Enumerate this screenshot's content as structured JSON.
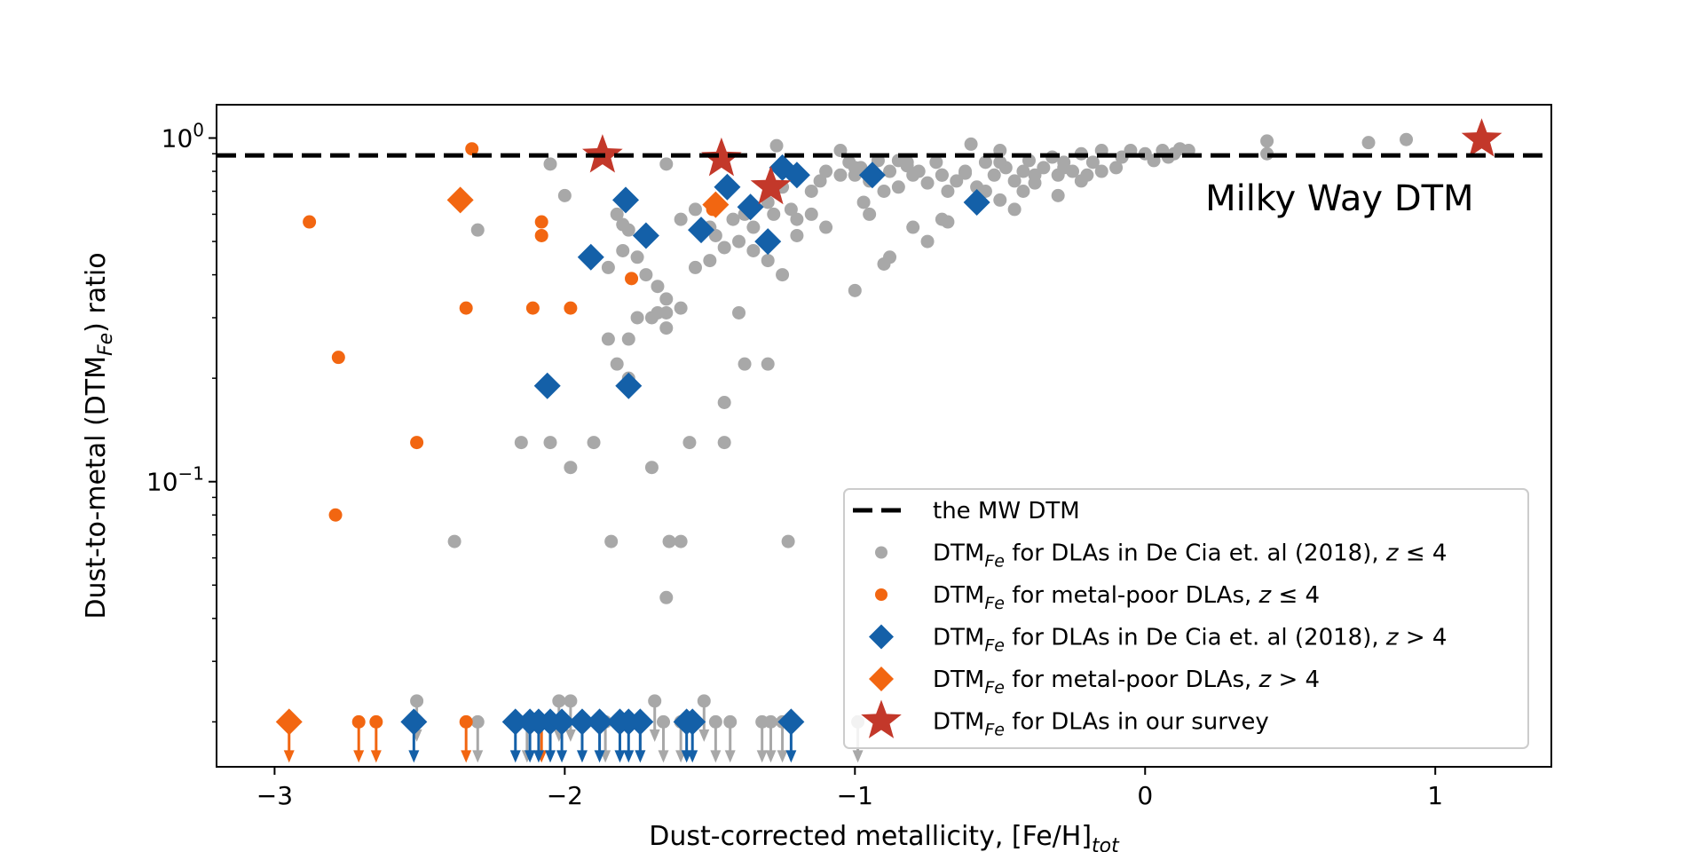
{
  "chart_data": {
    "type": "scatter",
    "xlabel": "Dust-corrected metallicity, [Fe/H]",
    "xlabel_sub": "tot",
    "ylabel_pre": "Dust-to-metal (DTM",
    "ylabel_sub": "Fe",
    "ylabel_post": ") ratio",
    "x_scale": "linear",
    "y_scale": "log",
    "xlim": [
      -3.2,
      1.4
    ],
    "ylim": [
      0.0148,
      1.25
    ],
    "x_ticks": [
      {
        "value": -3,
        "label": "−3"
      },
      {
        "value": -2,
        "label": "−2"
      },
      {
        "value": -1,
        "label": "−1"
      },
      {
        "value": 0,
        "label": "0"
      },
      {
        "value": 1,
        "label": "1"
      }
    ],
    "y_ticks": [
      {
        "value": 1.0,
        "base": "10",
        "exp": "0"
      },
      {
        "value": 0.1,
        "base": "10",
        "exp": "−1"
      }
    ],
    "y_minor_ticks": [
      0.02,
      0.03,
      0.04,
      0.05,
      0.06,
      0.07,
      0.08,
      0.09,
      0.2,
      0.3,
      0.4,
      0.5,
      0.6,
      0.7,
      0.8,
      0.9
    ],
    "reference_line": {
      "y": 0.89,
      "style": "dashed",
      "color": "#000000"
    },
    "annotation": {
      "text": "Milky Way DTM",
      "x": 0.67,
      "y": 0.67
    },
    "colors": {
      "gray": "#a8a8a8",
      "orange": "#f26611",
      "blue": "#1460a8",
      "red": "#c3382a"
    },
    "series": [
      {
        "name": "decia_low_z",
        "marker": "circle",
        "color": "#a8a8a8",
        "points": [
          [
            -2.3,
            0.54
          ],
          [
            -2.05,
            0.84
          ],
          [
            -2.0,
            0.68
          ],
          [
            -1.82,
            0.6
          ],
          [
            -1.8,
            0.56
          ],
          [
            -1.78,
            0.54
          ],
          [
            -1.65,
            0.84
          ],
          [
            -1.6,
            0.58
          ],
          [
            -1.55,
            0.62
          ],
          [
            -1.5,
            0.55
          ],
          [
            -1.48,
            0.52
          ],
          [
            -1.42,
            0.58
          ],
          [
            -1.38,
            0.6
          ],
          [
            -1.35,
            0.55
          ],
          [
            -1.3,
            0.65
          ],
          [
            -1.28,
            0.6
          ],
          [
            -1.25,
            0.72
          ],
          [
            -1.22,
            0.62
          ],
          [
            -1.2,
            0.58
          ],
          [
            -1.15,
            0.6
          ],
          [
            -1.12,
            0.75
          ],
          [
            -1.1,
            0.8
          ],
          [
            -1.05,
            0.92
          ],
          [
            -1.02,
            0.85
          ],
          [
            -1.0,
            0.78
          ],
          [
            -0.98,
            0.82
          ],
          [
            -0.95,
            0.75
          ],
          [
            -0.9,
            0.7
          ],
          [
            -0.88,
            0.8
          ],
          [
            -0.85,
            0.72
          ],
          [
            -0.82,
            0.85
          ],
          [
            -0.8,
            0.78
          ],
          [
            -0.78,
            0.8
          ],
          [
            -0.75,
            0.74
          ],
          [
            -0.72,
            0.85
          ],
          [
            -0.7,
            0.78
          ],
          [
            -0.68,
            0.7
          ],
          [
            -0.65,
            0.75
          ],
          [
            -0.62,
            0.8
          ],
          [
            -0.6,
            0.96
          ],
          [
            -0.58,
            0.72
          ],
          [
            -0.55,
            0.85
          ],
          [
            -0.52,
            0.78
          ],
          [
            -0.5,
            0.92
          ],
          [
            -0.48,
            0.82
          ],
          [
            -0.45,
            0.75
          ],
          [
            -0.42,
            0.8
          ],
          [
            -0.4,
            0.86
          ],
          [
            -0.38,
            0.74
          ],
          [
            -0.35,
            0.82
          ],
          [
            -0.32,
            0.88
          ],
          [
            -0.3,
            0.78
          ],
          [
            -0.28,
            0.85
          ],
          [
            -0.25,
            0.8
          ],
          [
            -0.22,
            0.9
          ],
          [
            -0.2,
            0.78
          ],
          [
            -0.18,
            0.85
          ],
          [
            -0.15,
            0.8
          ],
          [
            -0.1,
            0.82
          ],
          [
            -0.08,
            0.88
          ],
          [
            -0.05,
            0.92
          ],
          [
            0.0,
            0.9
          ],
          [
            0.03,
            0.86
          ],
          [
            0.06,
            0.92
          ],
          [
            0.08,
            0.88
          ],
          [
            0.1,
            0.9
          ],
          [
            0.12,
            0.93
          ],
          [
            0.15,
            0.92
          ],
          [
            0.42,
            0.98
          ],
          [
            0.42,
            0.9
          ],
          [
            0.77,
            0.97
          ],
          [
            0.9,
            0.99
          ],
          [
            -1.75,
            0.45
          ],
          [
            -1.72,
            0.4
          ],
          [
            -1.68,
            0.37
          ],
          [
            -1.65,
            0.34
          ],
          [
            -1.6,
            0.32
          ],
          [
            -1.55,
            0.42
          ],
          [
            -1.5,
            0.44
          ],
          [
            -1.45,
            0.48
          ],
          [
            -1.4,
            0.5
          ],
          [
            -1.35,
            0.47
          ],
          [
            -1.3,
            0.44
          ],
          [
            -1.25,
            0.4
          ],
          [
            -1.2,
            0.52
          ],
          [
            -1.1,
            0.55
          ],
          [
            -1.0,
            0.36
          ],
          [
            -0.9,
            0.43
          ],
          [
            -0.88,
            0.45
          ],
          [
            -0.8,
            0.55
          ],
          [
            -0.75,
            0.5
          ],
          [
            -0.7,
            0.58
          ],
          [
            -0.68,
            0.57
          ],
          [
            -1.85,
            0.42
          ],
          [
            -1.8,
            0.47
          ],
          [
            -1.75,
            0.3
          ],
          [
            -1.7,
            0.3
          ],
          [
            -1.68,
            0.31
          ],
          [
            -1.65,
            0.31
          ],
          [
            -1.4,
            0.31
          ],
          [
            -1.38,
            0.22
          ],
          [
            -1.3,
            0.22
          ],
          [
            -1.45,
            0.17
          ],
          [
            -1.65,
            0.28
          ],
          [
            -1.85,
            0.26
          ],
          [
            -1.78,
            0.26
          ],
          [
            -1.82,
            0.22
          ],
          [
            -1.78,
            0.2
          ],
          [
            -1.9,
            0.13
          ],
          [
            -2.05,
            0.13
          ],
          [
            -2.15,
            0.13
          ],
          [
            -1.57,
            0.13
          ],
          [
            -1.45,
            0.13
          ],
          [
            -1.98,
            0.11
          ],
          [
            -1.7,
            0.11
          ],
          [
            -2.38,
            0.067
          ],
          [
            -1.84,
            0.067
          ],
          [
            -1.64,
            0.067
          ],
          [
            -1.6,
            0.067
          ],
          [
            -1.23,
            0.067
          ],
          [
            -1.65,
            0.046
          ],
          [
            -0.85,
            0.86
          ],
          [
            -0.82,
            0.83
          ],
          [
            -0.7,
            0.78
          ],
          [
            -0.62,
            0.79
          ],
          [
            -0.55,
            0.7
          ],
          [
            -0.5,
            0.66
          ],
          [
            -0.45,
            0.62
          ],
          [
            -0.42,
            0.7
          ],
          [
            -0.38,
            0.78
          ],
          [
            -0.3,
            0.68
          ],
          [
            -0.28,
            0.82
          ],
          [
            -0.22,
            0.75
          ],
          [
            -0.15,
            0.92
          ],
          [
            -0.5,
            0.85
          ],
          [
            -1.27,
            0.95
          ],
          [
            -1.05,
            0.78
          ],
          [
            -1.15,
            0.7
          ],
          [
            -1.0,
            0.82
          ],
          [
            -0.92,
            0.86
          ],
          [
            -0.97,
            0.65
          ],
          [
            -0.95,
            0.6
          ]
        ]
      },
      {
        "name": "metal_poor_low_z",
        "marker": "circle",
        "color": "#f26611",
        "points": [
          [
            -2.32,
            0.93
          ],
          [
            -2.88,
            0.57
          ],
          [
            -2.08,
            0.57
          ],
          [
            -2.08,
            0.52
          ],
          [
            -2.34,
            0.32
          ],
          [
            -2.11,
            0.32
          ],
          [
            -1.98,
            0.32
          ],
          [
            -2.78,
            0.23
          ],
          [
            -2.51,
            0.13
          ],
          [
            -2.79,
            0.08
          ],
          [
            -1.49,
            0.62
          ],
          [
            -1.77,
            0.39
          ]
        ]
      },
      {
        "name": "decia_high_z",
        "marker": "diamond",
        "color": "#1460a8",
        "points": [
          [
            -1.44,
            0.72
          ],
          [
            -1.25,
            0.82
          ],
          [
            -1.2,
            0.78
          ],
          [
            -0.94,
            0.78
          ],
          [
            -0.58,
            0.65
          ],
          [
            -1.79,
            0.66
          ],
          [
            -1.72,
            0.52
          ],
          [
            -1.53,
            0.54
          ],
          [
            -1.36,
            0.63
          ],
          [
            -1.3,
            0.5
          ],
          [
            -1.91,
            0.45
          ],
          [
            -2.06,
            0.19
          ],
          [
            -1.78,
            0.19
          ]
        ]
      },
      {
        "name": "metal_poor_high_z",
        "marker": "diamond",
        "color": "#f26611",
        "points": [
          [
            -2.36,
            0.66
          ],
          [
            -1.48,
            0.64
          ]
        ]
      },
      {
        "name": "our_survey",
        "marker": "star",
        "color": "#c3382a",
        "points": [
          [
            -1.87,
            0.89
          ],
          [
            -1.46,
            0.87
          ],
          [
            -1.29,
            0.72
          ],
          [
            1.16,
            0.99
          ]
        ]
      },
      {
        "name": "upper_limits_gray_circle",
        "marker": "circle",
        "color": "#a8a8a8",
        "upper_limit": true,
        "points": [
          [
            -2.51,
            0.023
          ],
          [
            -2.3,
            0.02
          ],
          [
            -2.13,
            0.02
          ],
          [
            -2.02,
            0.023
          ],
          [
            -1.98,
            0.023
          ],
          [
            -1.86,
            0.02
          ],
          [
            -1.69,
            0.023
          ],
          [
            -1.6,
            0.02
          ],
          [
            -1.52,
            0.023
          ],
          [
            -1.48,
            0.02
          ],
          [
            -1.43,
            0.02
          ],
          [
            -1.32,
            0.02
          ],
          [
            -1.29,
            0.02
          ],
          [
            -1.25,
            0.02
          ],
          [
            -0.99,
            0.02
          ],
          [
            -1.74,
            0.02
          ],
          [
            -1.66,
            0.02
          ]
        ]
      },
      {
        "name": "upper_limits_orange_circle",
        "marker": "circle",
        "color": "#f26611",
        "upper_limit": true,
        "points": [
          [
            -2.71,
            0.02
          ],
          [
            -2.65,
            0.02
          ],
          [
            -2.34,
            0.02
          ],
          [
            -2.08,
            0.02
          ]
        ]
      },
      {
        "name": "upper_limits_blue_diamond",
        "marker": "diamond",
        "color": "#1460a8",
        "upper_limit": true,
        "points": [
          [
            -2.52,
            0.02
          ],
          [
            -2.17,
            0.02
          ],
          [
            -2.12,
            0.02
          ],
          [
            -2.09,
            0.02
          ],
          [
            -2.05,
            0.02
          ],
          [
            -2.01,
            0.02
          ],
          [
            -1.94,
            0.02
          ],
          [
            -1.88,
            0.02
          ],
          [
            -1.81,
            0.02
          ],
          [
            -1.78,
            0.02
          ],
          [
            -1.74,
            0.02
          ],
          [
            -1.58,
            0.02
          ],
          [
            -1.56,
            0.02
          ],
          [
            -1.22,
            0.02
          ]
        ]
      },
      {
        "name": "upper_limits_orange_diamond",
        "marker": "diamond",
        "color": "#f26611",
        "upper_limit": true,
        "points": [
          [
            -2.95,
            0.02
          ]
        ]
      }
    ],
    "legend": {
      "location": "lower-right",
      "entries": [
        {
          "marker": "dashed-line",
          "color": "#000000",
          "text": "the MW DTM",
          "has_sub": false
        },
        {
          "marker": "circle",
          "color": "#a8a8a8",
          "pre": "DTM",
          "sub": "Fe",
          "text": " for DLAs in De Cia et. al (2018), ",
          "z": "z",
          "cond": " ≤ 4",
          "has_sub": true
        },
        {
          "marker": "circle",
          "color": "#f26611",
          "pre": "DTM",
          "sub": "Fe",
          "text": " for metal-poor DLAs, ",
          "z": "z",
          "cond": " ≤ 4",
          "has_sub": true
        },
        {
          "marker": "diamond",
          "color": "#1460a8",
          "pre": "DTM",
          "sub": "Fe",
          "text": " for DLAs in De Cia et. al (2018), ",
          "z": "z",
          "cond": " > 4",
          "has_sub": true
        },
        {
          "marker": "diamond",
          "color": "#f26611",
          "pre": "DTM",
          "sub": "Fe",
          "text": " for metal-poor DLAs, ",
          "z": "z",
          "cond": " > 4",
          "has_sub": true
        },
        {
          "marker": "star",
          "color": "#c3382a",
          "pre": "DTM",
          "sub": "Fe",
          "text": " for DLAs in our survey",
          "z": "",
          "cond": "",
          "has_sub": true
        }
      ]
    }
  }
}
